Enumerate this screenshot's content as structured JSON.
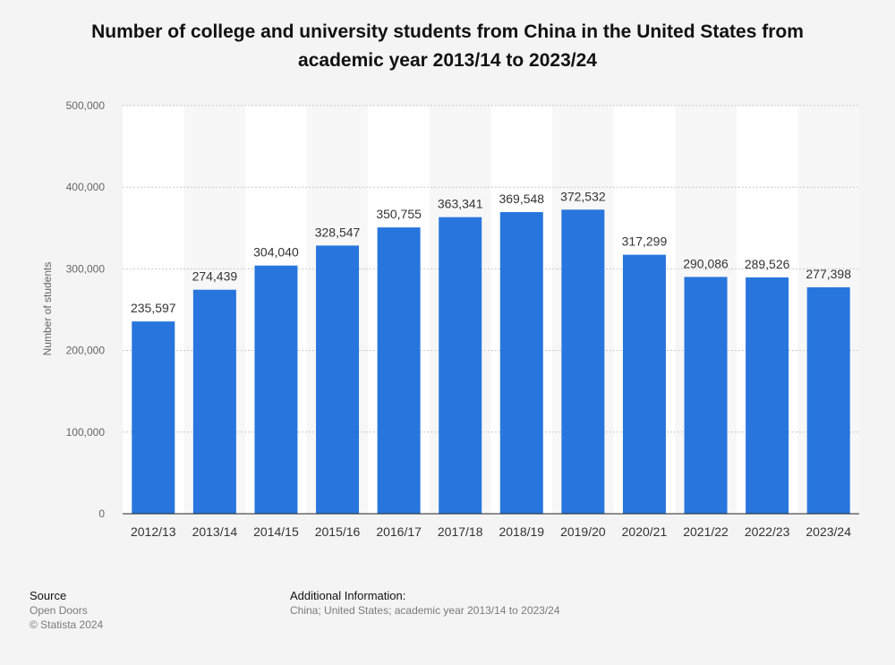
{
  "title_line1": "Number of college and university students from China in the United States from",
  "title_line2": "academic year 2013/14 to 2023/24",
  "chart_data": {
    "type": "bar",
    "categories": [
      "2012/13",
      "2013/14",
      "2014/15",
      "2015/16",
      "2016/17",
      "2017/18",
      "2018/19",
      "2019/20",
      "2020/21",
      "2021/22",
      "2022/23",
      "2023/24"
    ],
    "values": [
      235597,
      274439,
      304040,
      328547,
      350755,
      363341,
      369548,
      372532,
      317299,
      290086,
      289526,
      277398
    ],
    "value_labels": [
      "235,597",
      "274,439",
      "304,040",
      "328,547",
      "350,755",
      "363,341",
      "369,548",
      "372,532",
      "317,299",
      "290,086",
      "289,526",
      "277,398"
    ],
    "ylabel": "Number of students",
    "xlabel": "",
    "ylim": [
      0,
      500000
    ],
    "yticks": [
      0,
      100000,
      200000,
      300000,
      400000,
      500000
    ],
    "ytick_labels": [
      "0",
      "100,000",
      "200,000",
      "300,000",
      "400,000",
      "500,000"
    ],
    "bar_color": "#2876dd",
    "grid": true,
    "legend": "none"
  },
  "footer": {
    "source_heading": "Source",
    "source_name": "Open Doors",
    "copyright": "© Statista 2024",
    "info_heading": "Additional Information:",
    "info_text": "China; United States; academic year 2013/14 to 2023/24"
  }
}
